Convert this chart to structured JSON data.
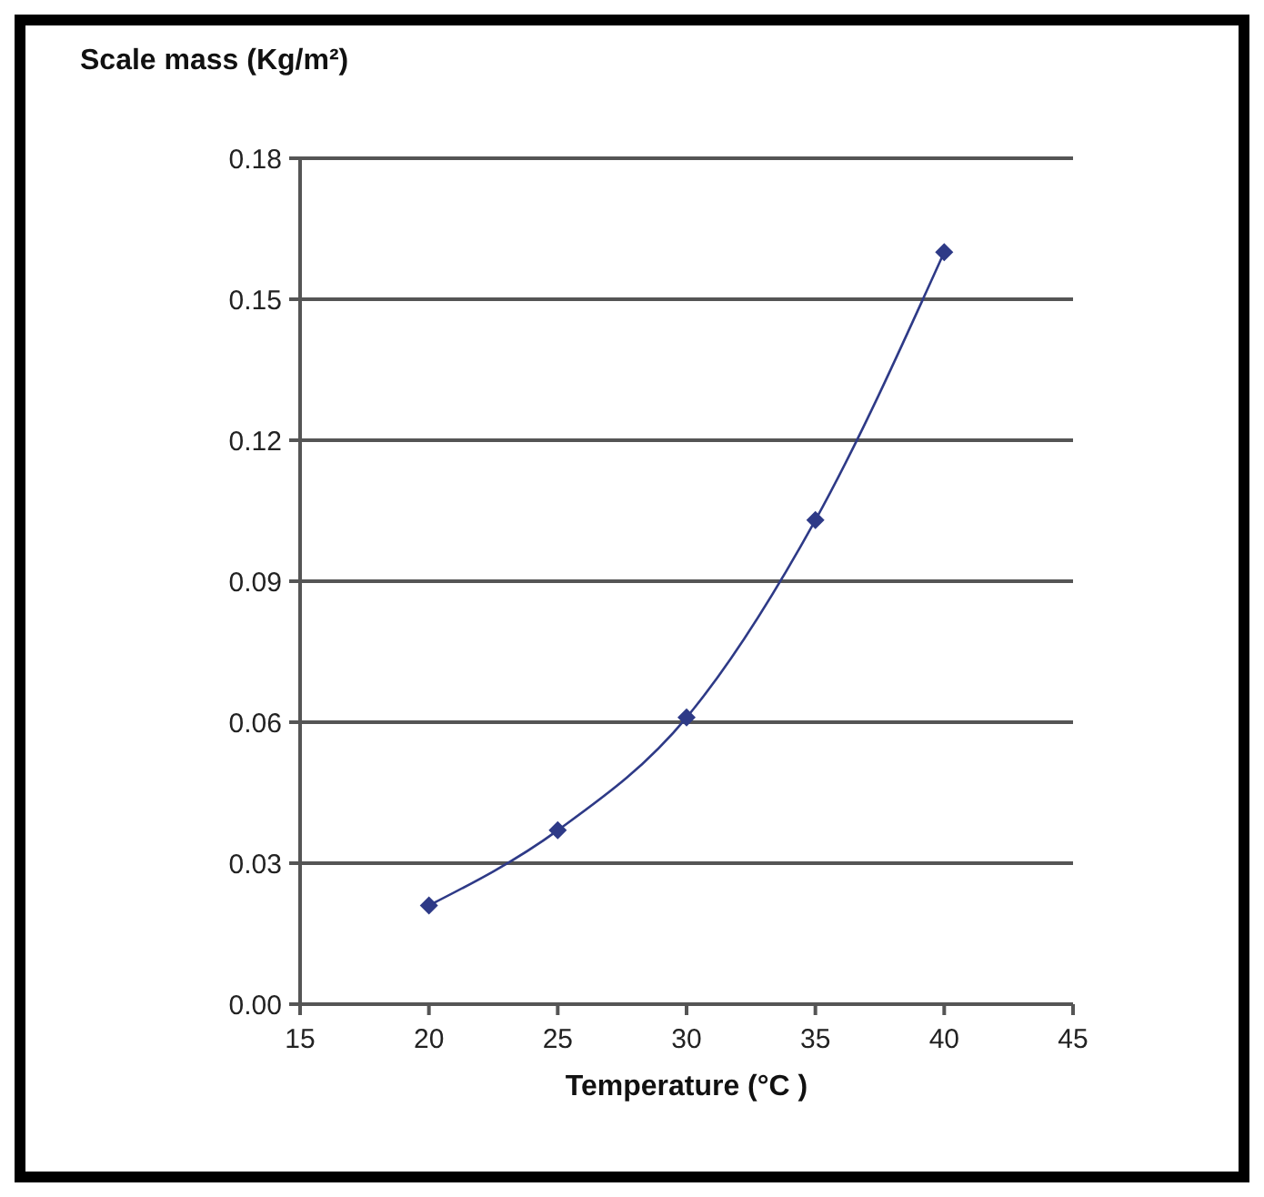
{
  "chart_data": {
    "type": "line",
    "title": "Scale mass (Kg/m²)",
    "xlabel": "Temperature (°C )",
    "x": [
      20,
      25,
      30,
      35,
      40
    ],
    "series": [
      {
        "color": "#2e3a87",
        "values": [
          0.021,
          0.037,
          0.061,
          0.103,
          0.16
        ]
      }
    ],
    "xlim": [
      15,
      45
    ],
    "xticks": [
      15,
      20,
      25,
      30,
      35,
      40,
      45
    ],
    "ylim": [
      0,
      0.18
    ],
    "yticks": [
      {
        "value": 0,
        "label": "0.00"
      },
      0.03,
      0.06,
      0.09,
      0.12,
      0.15,
      0.18
    ],
    "grid": "y",
    "marker": "diamond",
    "line_style": "solid"
  }
}
